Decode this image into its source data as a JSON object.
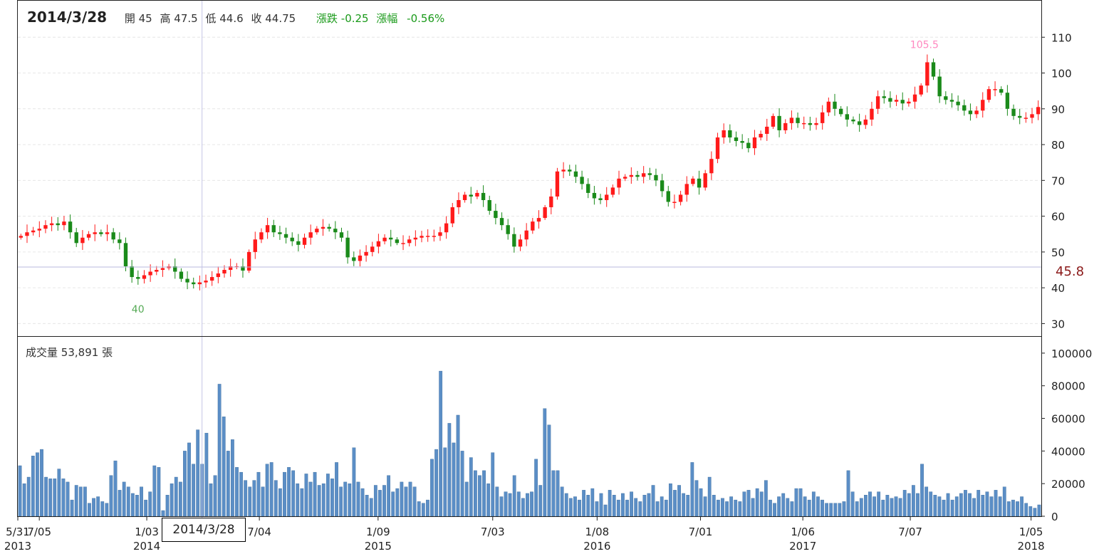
{
  "chart_data": [
    {
      "type": "candlestick",
      "yticks": [
        30,
        40,
        50,
        60,
        70,
        80,
        90,
        100,
        110
      ],
      "ylim": [
        26.5,
        120.2
      ],
      "max_label": "105.5",
      "min_label": "40",
      "cursor_price": "45.8",
      "current": {
        "date": "2014/3/28",
        "open_label": "開",
        "open": "45",
        "high_label": "高",
        "high": "47.5",
        "low_label": "低",
        "low": "44.6",
        "close_label": "收",
        "close": "44.75",
        "change_label": "漲跌",
        "change": "-0.25",
        "pct_label": "漲幅",
        "pct": "-0.56%"
      },
      "series": [
        {
          "values": [
            54.5,
            55.5,
            56.0,
            56.5,
            57.5,
            58.0,
            57.5,
            58.5,
            55.5,
            52.5,
            54.0,
            55.0,
            55.5,
            55.0,
            55.5,
            53.5,
            52.5,
            46.0,
            43.0,
            42.5,
            43.5,
            44.5,
            45.0,
            45.5,
            46.0,
            44.5,
            42.5,
            41.5,
            41.0,
            41.5,
            42.0,
            43.0,
            44.0,
            45.0,
            46.0,
            46.0,
            44.8,
            50.0,
            53.5,
            55.5,
            57.5,
            55.5,
            55.0,
            54.0,
            53.0,
            52.0,
            54.0,
            55.5,
            56.5,
            57.0,
            56.5,
            55.5,
            54.0,
            48.5,
            47.5,
            49.0,
            50.0,
            51.5,
            53.0,
            54.0,
            53.5,
            52.5,
            52.5,
            53.5,
            54.0,
            54.5,
            54.5,
            54.5,
            55.5,
            58.0,
            62.5,
            64.5,
            66.0,
            65.5,
            66.5,
            64.5,
            61.5,
            59.5,
            57.5,
            55.0,
            51.5,
            53.5,
            56.0,
            58.5,
            59.5,
            62.5,
            65.5,
            72.5,
            73.0,
            72.5,
            71.0,
            69.0,
            66.5,
            65.0,
            64.5,
            66.0,
            68.0,
            70.5,
            71.0,
            71.5,
            71.0,
            72.0,
            71.5,
            70.0,
            67.0,
            64.0,
            64.0,
            66.0,
            69.0,
            70.5,
            68.0,
            72.0,
            76.0,
            82.0,
            84.0,
            82.0,
            81.0,
            80.5,
            79.0,
            82.0,
            83.0,
            85.0,
            88.0,
            84.0,
            86.0,
            87.5,
            86.0,
            86.0,
            85.5,
            86.0,
            89.0,
            92.0,
            90.0,
            88.5,
            87.0,
            86.5,
            85.5,
            87.0,
            90.0,
            93.5,
            93.0,
            92.0,
            92.5,
            91.5,
            92.0,
            94.0,
            96.5,
            103.0,
            99.0,
            93.5,
            92.5,
            92.0,
            91.0,
            89.5,
            88.5,
            89.5,
            92.5,
            95.5,
            95.5,
            94.5,
            90.0,
            88.0,
            87.5,
            87.5,
            88.5,
            90.5
          ]
        }
      ]
    },
    {
      "type": "bar",
      "title": "成交量",
      "volume": "53,891",
      "unit": "張",
      "yticks": [
        0,
        20000,
        40000,
        60000,
        80000,
        100000
      ],
      "ylim": [
        0,
        110000
      ],
      "series": [
        {
          "values": [
            31000,
            20000,
            24000,
            37000,
            39000,
            41000,
            24000,
            23000,
            23000,
            29000,
            23000,
            21000,
            10000,
            19000,
            18000,
            18000,
            8000,
            11000,
            12000,
            9000,
            8000,
            25000,
            34000,
            16000,
            21000,
            18000,
            14000,
            13000,
            18000,
            10000,
            15000,
            31000,
            30000,
            3500,
            13000,
            20000,
            24000,
            21000,
            40000,
            45000,
            32000,
            53000,
            32000,
            51000,
            20000,
            25000,
            81000,
            61000,
            40000,
            47000,
            30000,
            27000,
            22000,
            18000,
            22000,
            27000,
            18000,
            32000,
            33000,
            22000,
            17000,
            27000,
            30000,
            28000,
            20000,
            17000,
            26000,
            21000,
            27000,
            19000,
            20000,
            26000,
            23000,
            33000,
            18000,
            21000,
            20000,
            42000,
            21000,
            17000,
            13000,
            11000,
            19000,
            16000,
            19000,
            25000,
            15000,
            17000,
            21000,
            18000,
            21000,
            18000,
            9000,
            8000,
            10000,
            35000,
            41000,
            89000,
            42000,
            57000,
            45000,
            62000,
            40000,
            21000,
            36000,
            28000,
            25000,
            28000,
            20000,
            39000,
            18000,
            12000,
            15000,
            14000,
            25000,
            15000,
            11000,
            14000,
            15000,
            35000,
            19000,
            66000,
            56000,
            28000,
            28000,
            18000,
            14000,
            11000,
            12000,
            10000,
            16000,
            13000,
            17000,
            9000,
            14000,
            7000,
            16000,
            13000,
            10000,
            14000,
            10000,
            15000,
            11000,
            9000,
            13000,
            14000,
            19000,
            9000,
            12000,
            10000,
            20000,
            16000,
            19000,
            14000,
            13000,
            33000,
            22000,
            17000,
            12000,
            24000,
            13000,
            10000,
            11000,
            9000,
            12000,
            10000,
            9000,
            15000,
            16000,
            11000,
            17000,
            15000,
            22000,
            10000,
            8000,
            12000,
            14000,
            11000,
            9000,
            17000,
            17000,
            12000,
            10000,
            15000,
            12000,
            10000,
            8000,
            8000,
            8000,
            8000,
            9000,
            28000,
            15000,
            9000,
            11000,
            13000,
            15000,
            12000,
            15000,
            10000,
            13000,
            11000,
            12000,
            11000,
            16000,
            14000,
            19000,
            14000,
            32000,
            18000,
            15000,
            13000,
            12000,
            10000,
            14000,
            10000,
            12000,
            14000,
            16000,
            14000,
            11000,
            16000,
            13000,
            15000,
            12000,
            16000,
            12000,
            18000,
            9000,
            10000,
            9000,
            12000,
            8000,
            6000,
            5000,
            7000
          ]
        }
      ]
    },
    {
      "type": "x-axis",
      "ticks": [
        {
          "label": "5/31",
          "sub": "2013"
        },
        {
          "label": "7/05",
          "sub": ""
        },
        {
          "label": "1/03",
          "sub": "2014"
        },
        {
          "label": "7/04",
          "sub": ""
        },
        {
          "label": "1/09",
          "sub": "2015"
        },
        {
          "label": "7/03",
          "sub": ""
        },
        {
          "label": "1/08",
          "sub": "2016"
        },
        {
          "label": "7/01",
          "sub": ""
        },
        {
          "label": "1/06",
          "sub": "2017"
        },
        {
          "label": "7/07",
          "sub": ""
        },
        {
          "label": "1/05",
          "sub": "2018"
        }
      ],
      "cursor_date": "2014/3/28"
    }
  ],
  "colors": {
    "up": "#ff1a1a",
    "down": "#1a8a1a",
    "volume_bar": "#5b8ec6",
    "max_label": "#ff88c0",
    "min_label": "#55aa55",
    "cursor_price": "#8b1a1a",
    "grid": "#e6e6e6"
  }
}
